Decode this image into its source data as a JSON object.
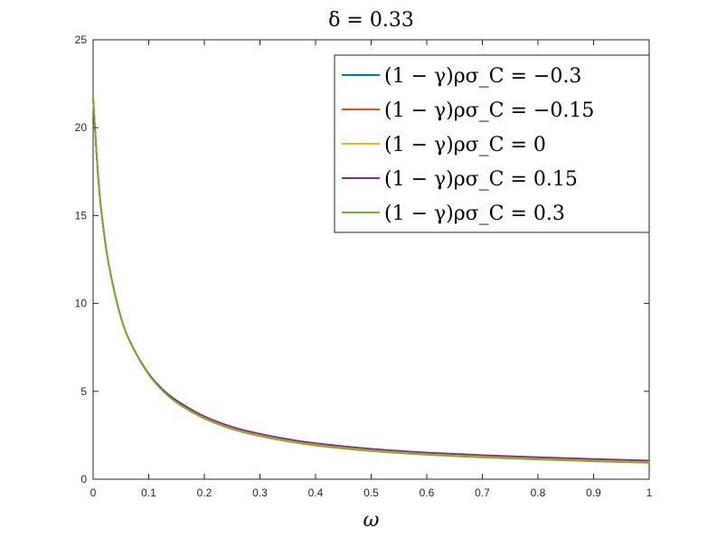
{
  "chart_data": {
    "type": "line",
    "title": "δ = 0.33",
    "xlabel": "ω",
    "ylabel": "",
    "xlim": [
      0,
      1
    ],
    "ylim": [
      0,
      25
    ],
    "xticks": [
      0,
      0.1,
      0.2,
      0.3,
      0.4,
      0.5,
      0.6,
      0.7,
      0.8,
      0.9,
      1
    ],
    "xtick_labels": [
      "0",
      "0.1",
      "0.2",
      "0.3",
      "0.4",
      "0.5",
      "0.6",
      "0.7",
      "0.8",
      "0.9",
      "1"
    ],
    "yticks": [
      0,
      5,
      10,
      15,
      20,
      25
    ],
    "ytick_labels": [
      "0",
      "5",
      "10",
      "15",
      "20",
      "25"
    ],
    "grid": false,
    "legend_position": "top-right",
    "x": [
      0,
      0.01,
      0.02,
      0.03,
      0.05,
      0.07,
      0.1,
      0.13,
      0.16,
      0.2,
      0.25,
      0.3,
      0.35,
      0.4,
      0.5,
      0.6,
      0.7,
      0.8,
      0.9,
      1.0
    ],
    "series": [
      {
        "name": "(1 − γ)ρσ_C = −0.3",
        "color": "#0072BD",
        "values": [
          21.7,
          16.8,
          13.9,
          11.9,
          9.2,
          7.6,
          6.0,
          4.95,
          4.25,
          3.55,
          2.95,
          2.55,
          2.25,
          2.02,
          1.7,
          1.49,
          1.34,
          1.22,
          1.12,
          1.03
        ]
      },
      {
        "name": "(1 − γ)ρσ_C = −0.15",
        "color": "#D95319",
        "values": [
          21.7,
          16.8,
          13.9,
          11.9,
          9.2,
          7.6,
          6.0,
          4.93,
          4.22,
          3.52,
          2.92,
          2.52,
          2.22,
          1.99,
          1.67,
          1.46,
          1.31,
          1.19,
          1.09,
          1.0
        ]
      },
      {
        "name": "(1 − γ)ρσ_C = 0",
        "color": "#EDB120",
        "values": [
          21.7,
          16.8,
          13.9,
          11.9,
          9.2,
          7.6,
          6.0,
          4.91,
          4.19,
          3.49,
          2.89,
          2.49,
          2.19,
          1.96,
          1.64,
          1.43,
          1.28,
          1.16,
          1.06,
          0.97
        ]
      },
      {
        "name": "(1 − γ)ρσ_C = 0.15",
        "color": "#7E2F8E",
        "values": [
          21.7,
          16.8,
          13.9,
          11.9,
          9.2,
          7.6,
          6.0,
          4.97,
          4.28,
          3.58,
          2.98,
          2.58,
          2.28,
          2.05,
          1.73,
          1.52,
          1.37,
          1.25,
          1.15,
          1.06
        ]
      },
      {
        "name": "(1 − γ)ρσ_C = 0.3",
        "color": "#77AC30",
        "values": [
          21.7,
          16.8,
          13.9,
          11.9,
          9.2,
          7.6,
          5.95,
          4.88,
          4.15,
          3.45,
          2.85,
          2.45,
          2.15,
          1.92,
          1.6,
          1.39,
          1.24,
          1.12,
          1.02,
          0.93
        ]
      }
    ]
  }
}
